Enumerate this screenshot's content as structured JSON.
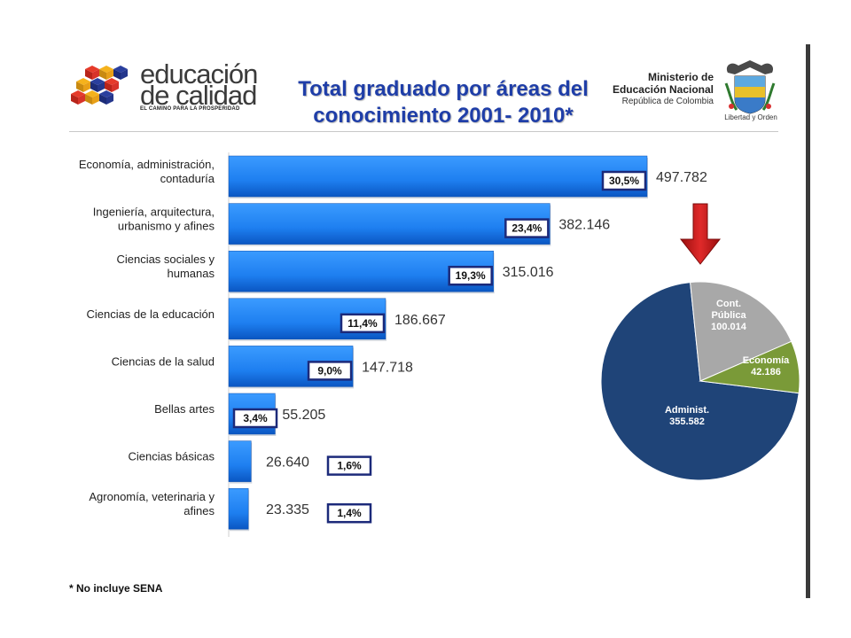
{
  "header": {
    "logo": {
      "line1": "educación",
      "line2": "de calidad",
      "tagline": "EL CAMINO PARA LA PROSPERIDAD"
    },
    "title_line1": "Total graduado por áreas del",
    "title_line2": "conocimiento 2001- 2010*",
    "ministry": {
      "line1": "Ministerio de",
      "line2": "Educación Nacional",
      "line3": "República de Colombia"
    },
    "crest_caption": "Libertad y Orden"
  },
  "footnote": "* No incluye SENA",
  "colors": {
    "bar": "#1e7ff0",
    "bar_dark": "#0a56c2",
    "pct_border": "#1c2a7a",
    "arrow": "#cc1414",
    "pie_admin": "#1f4478",
    "pie_cont": "#a8a8a8",
    "pie_econ": "#7a9a38",
    "title": "#1f3ea8"
  },
  "chart_data": [
    {
      "type": "bar",
      "orientation": "horizontal",
      "categories": [
        [
          "Economía, administración,",
          "contaduría"
        ],
        [
          "Ingeniería, arquitectura,",
          "urbanismo y afines"
        ],
        [
          "Ciencias sociales y",
          "humanas"
        ],
        [
          "Ciencias de la educación"
        ],
        [
          "Ciencias de la salud"
        ],
        [
          "Bellas artes"
        ],
        [
          "Ciencias básicas"
        ],
        [
          "Agronomía, veterinaria y",
          "afines"
        ]
      ],
      "values": [
        497782,
        382146,
        315016,
        186667,
        147718,
        55205,
        26640,
        23335
      ],
      "value_labels": [
        "497.782",
        "382.146",
        "315.016",
        "186.667",
        "147.718",
        "55.205",
        "26.640",
        "23.335"
      ],
      "percent_labels": [
        "30,5%",
        "23,4%",
        "19,3%",
        "11,4%",
        "9,0%",
        "3,4%",
        "1,6%",
        "1,4%"
      ],
      "xlim": [
        0,
        497782
      ],
      "grid": false,
      "legend": "none"
    },
    {
      "type": "pie",
      "slices": [
        {
          "label_lines": [
            "Administ.",
            "355.582"
          ],
          "value": 355582,
          "color": "#1f4478"
        },
        {
          "label_lines": [
            "Cont.",
            "Pública",
            "100.014"
          ],
          "value": 100014,
          "color": "#a8a8a8"
        },
        {
          "label_lines": [
            "Economía",
            "42.186"
          ],
          "value": 42186,
          "color": "#7a9a38"
        }
      ],
      "legend": "none"
    }
  ]
}
